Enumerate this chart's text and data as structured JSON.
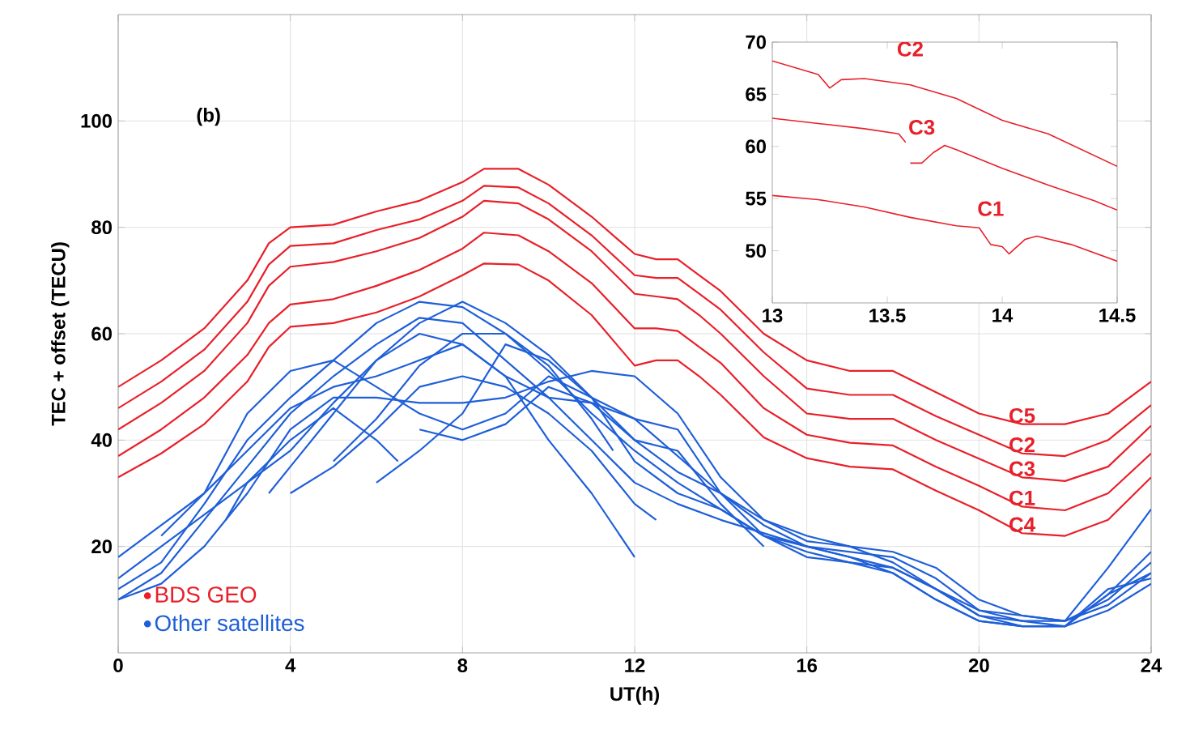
{
  "chart_data": [
    {
      "type": "line",
      "xlabel": "UT(h)",
      "ylabel": "TEC + offset (TECU)",
      "xlim": [
        0,
        24
      ],
      "ylim": [
        0,
        120
      ],
      "xticks": [
        0,
        4,
        8,
        12,
        16,
        20,
        24
      ],
      "yticks": [
        20,
        40,
        60,
        80,
        100
      ],
      "grid": true,
      "legend": "bottom left",
      "marker": "none",
      "line_style": "solid",
      "annotations": [
        "(b)",
        "C5",
        "C2",
        "C3",
        "C1",
        "C4"
      ],
      "series": [
        {
          "name": "BDS GEO",
          "color": "#e8202a",
          "x": [
            0,
            1,
            2,
            3,
            3.5,
            4,
            5,
            6,
            7,
            8,
            8.5,
            9.3,
            10,
            11,
            12,
            12.5,
            13,
            13.5,
            14,
            15,
            16,
            17,
            18,
            19,
            20,
            21,
            22,
            23,
            24
          ],
          "values": [
            50,
            55,
            61,
            70,
            77,
            80,
            80.5,
            83,
            85,
            88.5,
            91,
            91,
            88,
            82,
            75,
            74,
            74,
            71,
            68,
            60,
            55,
            53,
            53,
            49,
            45,
            43,
            43,
            45,
            51
          ]
        },
        {
          "color": "#e8202a",
          "x": [
            0,
            1,
            2,
            3,
            3.5,
            4,
            5,
            6,
            7,
            8,
            8.5,
            9.3,
            10,
            11,
            12,
            12.5,
            13,
            13.5,
            14,
            15,
            16,
            17,
            18,
            19,
            20,
            21,
            22,
            23,
            24
          ],
          "values": [
            46,
            51,
            57,
            66,
            73,
            76.5,
            77,
            79.5,
            81.5,
            85,
            87.8,
            87.5,
            84.5,
            78.5,
            71,
            70.5,
            70.5,
            67.5,
            64.5,
            56.5,
            49.7,
            48.5,
            48.5,
            44.5,
            41,
            37.5,
            37,
            40,
            46.6
          ]
        },
        {
          "color": "#e8202a",
          "x": [
            0,
            1,
            2,
            3,
            3.5,
            4,
            5,
            6,
            7,
            8,
            8.5,
            9.3,
            10,
            11,
            12,
            12.5,
            13,
            13.5,
            14,
            15,
            16,
            17,
            18,
            19,
            20,
            21,
            22,
            23,
            24
          ],
          "values": [
            42,
            47,
            53,
            62,
            69,
            72.6,
            73.5,
            75.5,
            78,
            82,
            85,
            84.5,
            81.5,
            75.5,
            67.5,
            67,
            66.5,
            63.5,
            60,
            52,
            45,
            44,
            44,
            40,
            36.5,
            33,
            32.3,
            35,
            42.7
          ]
        },
        {
          "color": "#e8202a",
          "x": [
            0,
            1,
            2,
            3,
            3.5,
            4,
            5,
            6,
            7,
            8,
            8.5,
            9.3,
            10,
            11,
            12,
            12.5,
            13,
            13.5,
            14,
            15,
            16,
            17,
            18,
            19,
            20,
            21,
            22,
            23,
            24
          ],
          "values": [
            37,
            42,
            48,
            56,
            62,
            65.5,
            66.5,
            69,
            72,
            76,
            79,
            78.5,
            75.5,
            69.5,
            61,
            61,
            60.5,
            57.5,
            54.5,
            46,
            41,
            39.5,
            39,
            35,
            31.4,
            27.5,
            26.8,
            30,
            37.5
          ]
        },
        {
          "color": "#e8202a",
          "x": [
            0,
            1,
            2,
            3,
            3.5,
            4,
            5,
            6,
            7,
            8,
            8.5,
            9.3,
            10,
            11,
            12,
            12.5,
            13,
            13.5,
            14,
            15,
            16,
            17,
            18,
            19,
            20,
            21,
            22,
            23,
            24
          ],
          "values": [
            33,
            37.5,
            43,
            51,
            57.5,
            61.3,
            62,
            64,
            67,
            71,
            73.2,
            73,
            70,
            63.5,
            54,
            55,
            55,
            52,
            48.5,
            40.5,
            36.6,
            35,
            34.5,
            30.5,
            26.8,
            22.5,
            22,
            25,
            33
          ]
        },
        {
          "name": "Other satellites",
          "color": "#1f5fd8",
          "x": [
            0,
            1,
            2,
            3,
            4,
            5,
            6,
            7,
            8,
            9,
            10,
            11,
            12,
            13,
            14,
            16,
            18,
            20,
            21,
            22,
            23,
            24
          ],
          "values": [
            10,
            15,
            25,
            35,
            45,
            52,
            58,
            63,
            62,
            55,
            48,
            40,
            32,
            28,
            25,
            20,
            16,
            8,
            6,
            6,
            9,
            15
          ]
        },
        {
          "color": "#1f5fd8",
          "x": [
            0,
            1,
            2,
            3,
            4,
            5,
            6,
            7,
            8,
            9,
            10,
            11,
            12,
            13,
            14,
            15,
            16,
            18,
            19,
            20,
            21,
            22,
            23,
            24
          ],
          "values": [
            12,
            17,
            28,
            40,
            48,
            55,
            62,
            66,
            65,
            60,
            53,
            45,
            38,
            32,
            27,
            22,
            19,
            15,
            10,
            6,
            5,
            5,
            11,
            19
          ]
        },
        {
          "color": "#1f5fd8",
          "x": [
            0,
            1,
            2,
            3,
            4,
            5,
            6,
            7,
            8,
            9,
            10,
            11,
            12,
            13,
            14,
            15,
            16,
            18,
            19,
            20,
            21,
            22,
            23,
            24
          ],
          "values": [
            18,
            24,
            30,
            38,
            46,
            50,
            52,
            55,
            58,
            52,
            48,
            47,
            44,
            37,
            30,
            24,
            20,
            18,
            14,
            8,
            7,
            6,
            16,
            27
          ]
        },
        {
          "color": "#1f5fd8",
          "x": [
            0,
            1,
            2,
            3,
            4,
            5,
            6,
            7,
            8,
            9,
            10,
            11,
            12
          ],
          "values": [
            14,
            20,
            26,
            32,
            38,
            47,
            55,
            60,
            58,
            52,
            40,
            30,
            18
          ]
        },
        {
          "color": "#1f5fd8",
          "x": [
            1,
            2,
            3,
            4,
            5,
            6,
            7,
            8,
            9,
            10,
            11,
            12,
            13,
            14,
            15,
            16,
            17,
            18,
            19,
            20,
            21,
            22,
            23,
            24
          ],
          "values": [
            22,
            30,
            45,
            53,
            55,
            50,
            45,
            42,
            45,
            52,
            48,
            44,
            42,
            30,
            22,
            18,
            17,
            16,
            12,
            7,
            5,
            5,
            8,
            13
          ]
        },
        {
          "color": "#1f5fd8",
          "x": [
            2.5,
            3,
            4,
            5,
            6,
            6.5
          ],
          "values": [
            25,
            32,
            40,
            46,
            40,
            36
          ]
        },
        {
          "color": "#1f5fd8",
          "x": [
            3.5,
            4,
            5,
            6,
            7,
            8,
            9,
            10,
            11,
            12,
            13,
            14,
            15,
            16,
            17,
            18,
            19,
            20,
            21,
            22,
            23,
            24
          ],
          "values": [
            30,
            35,
            45,
            55,
            62,
            66,
            62,
            56,
            48,
            40,
            34,
            30,
            25,
            22,
            20,
            19,
            16,
            10,
            7,
            6,
            10,
            17
          ]
        },
        {
          "color": "#1f5fd8",
          "x": [
            4,
            5,
            6,
            7,
            8,
            9,
            10,
            11,
            12,
            12.5
          ],
          "values": [
            30,
            35,
            42,
            50,
            52,
            50,
            45,
            38,
            28,
            25
          ]
        },
        {
          "color": "#1f5fd8",
          "x": [
            6,
            7,
            8,
            9,
            10,
            11,
            12,
            13,
            14,
            15,
            16,
            17,
            18,
            19,
            20,
            21,
            22,
            23,
            24
          ],
          "values": [
            32,
            38,
            45,
            58,
            55,
            48,
            36,
            30,
            27,
            22,
            20,
            18,
            15,
            10,
            6,
            5,
            5,
            11,
            15
          ]
        },
        {
          "color": "#1f5fd8",
          "x": [
            0,
            1,
            2,
            3,
            4,
            5,
            6,
            7,
            8,
            9,
            10,
            11,
            12,
            13,
            14,
            15,
            16,
            17,
            18,
            19,
            20,
            21,
            22,
            23,
            24
          ],
          "values": [
            10,
            13,
            20,
            30,
            42,
            48,
            48,
            47,
            47,
            48,
            51,
            53,
            52,
            45,
            33,
            25,
            21,
            20,
            17,
            12,
            7,
            6,
            5,
            12,
            14
          ]
        },
        {
          "color": "#1f5fd8",
          "x": [
            5,
            6,
            7,
            8,
            9,
            10,
            11,
            11.5
          ],
          "values": [
            36,
            44,
            54,
            60,
            60,
            54,
            44,
            38
          ]
        },
        {
          "color": "#1f5fd8",
          "x": [
            7,
            8,
            9,
            10,
            11,
            12,
            13,
            14,
            15
          ],
          "values": [
            42,
            40,
            43,
            50,
            47,
            40,
            38,
            28,
            20
          ]
        }
      ]
    },
    {
      "type": "line",
      "xlim": [
        13,
        14.5
      ],
      "ylim": [
        45,
        70
      ],
      "xticks": [
        13,
        13.5,
        14,
        14.5
      ],
      "yticks": [
        50,
        55,
        60,
        65,
        70
      ],
      "marker": "none",
      "line_style": "solid",
      "series": [
        {
          "name": "C2",
          "color": "#e8202a",
          "x": [
            13.0,
            13.2,
            13.25,
            13.3,
            13.4,
            13.6,
            13.8,
            14.0,
            14.2,
            14.5
          ],
          "values": [
            68.2,
            66.9,
            65.6,
            66.4,
            66.5,
            65.9,
            64.6,
            62.5,
            61.2,
            58.1
          ]
        },
        {
          "name": "C3",
          "color": "#e8202a",
          "x": [
            13.0,
            13.2,
            13.4,
            13.55,
            13.58,
            13.59,
            13.6,
            13.65,
            13.7,
            13.75,
            13.8,
            14.0,
            14.2,
            14.4,
            14.5
          ],
          "values": [
            62.7,
            62.2,
            61.7,
            61.2,
            60.4,
            null,
            58.4,
            58.4,
            59.4,
            60.1,
            59.7,
            57.9,
            56.3,
            54.8,
            53.9
          ]
        },
        {
          "name": "C1",
          "color": "#e8202a",
          "x": [
            13.0,
            13.2,
            13.4,
            13.6,
            13.8,
            13.9,
            13.95,
            14.0,
            14.03,
            14.1,
            14.15,
            14.3,
            14.5
          ],
          "values": [
            55.3,
            54.9,
            54.2,
            53.2,
            52.4,
            52.2,
            50.6,
            50.4,
            49.7,
            51.1,
            51.4,
            50.6,
            49.0
          ]
        }
      ]
    }
  ]
}
